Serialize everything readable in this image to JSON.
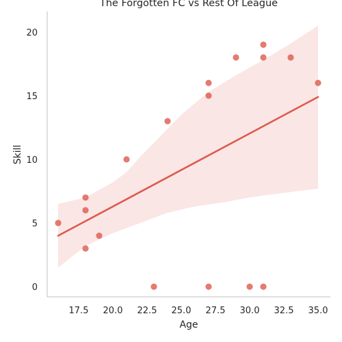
{
  "chart_data": {
    "type": "scatter",
    "title": "The Forgotten FC vs Rest Of League",
    "xlabel": "Age",
    "ylabel": "Skill",
    "xlim": [
      15.2,
      35.9
    ],
    "ylim": [
      -0.8,
      21.6
    ],
    "xticks": [
      "17.5",
      "20.0",
      "22.5",
      "25.0",
      "27.5",
      "30.0",
      "32.5",
      "35.0"
    ],
    "yticks": [
      "0",
      "5",
      "10",
      "15",
      "20"
    ],
    "grid": false,
    "color": "#dd5a4e",
    "points": [
      {
        "x": 16,
        "y": 5
      },
      {
        "x": 18,
        "y": 7
      },
      {
        "x": 18,
        "y": 6
      },
      {
        "x": 18,
        "y": 3
      },
      {
        "x": 19,
        "y": 4
      },
      {
        "x": 21,
        "y": 10
      },
      {
        "x": 23,
        "y": 0
      },
      {
        "x": 24,
        "y": 13
      },
      {
        "x": 27,
        "y": 16
      },
      {
        "x": 27,
        "y": 15
      },
      {
        "x": 27,
        "y": 0
      },
      {
        "x": 29,
        "y": 18
      },
      {
        "x": 30,
        "y": 0
      },
      {
        "x": 31,
        "y": 19
      },
      {
        "x": 31,
        "y": 18
      },
      {
        "x": 31,
        "y": 0
      },
      {
        "x": 33,
        "y": 18
      },
      {
        "x": 35,
        "y": 16
      }
    ],
    "regression": {
      "line": [
        {
          "x": 16,
          "y": 4.0
        },
        {
          "x": 35,
          "y": 14.9
        }
      ],
      "ci_upper": [
        {
          "x": 16,
          "y": 6.5
        },
        {
          "x": 18,
          "y": 7.0
        },
        {
          "x": 20,
          "y": 8.2
        },
        {
          "x": 21,
          "y": 9.0
        },
        {
          "x": 22,
          "y": 10.2
        },
        {
          "x": 23,
          "y": 11.3
        },
        {
          "x": 25,
          "y": 13.5
        },
        {
          "x": 27,
          "y": 15.3
        },
        {
          "x": 29,
          "y": 16.6
        },
        {
          "x": 31,
          "y": 17.8
        },
        {
          "x": 33,
          "y": 19.1
        },
        {
          "x": 35,
          "y": 20.5
        }
      ],
      "ci_lower": [
        {
          "x": 16,
          "y": 1.5
        },
        {
          "x": 18,
          "y": 3.2
        },
        {
          "x": 20,
          "y": 4.2
        },
        {
          "x": 22,
          "y": 5.0
        },
        {
          "x": 24,
          "y": 5.8
        },
        {
          "x": 26,
          "y": 6.3
        },
        {
          "x": 28,
          "y": 6.6
        },
        {
          "x": 30,
          "y": 7.0
        },
        {
          "x": 32,
          "y": 7.3
        },
        {
          "x": 35,
          "y": 7.7
        }
      ]
    }
  }
}
